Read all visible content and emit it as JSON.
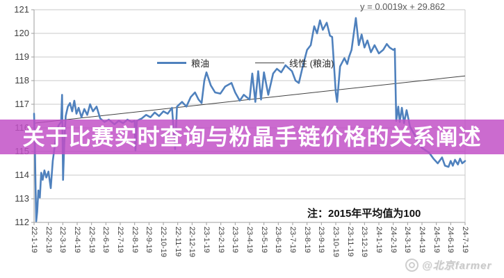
{
  "overlay": {
    "title": "关于比赛实时查询与粉晶手链价格的关系阐述",
    "band_color": "#c14fc6"
  },
  "watermark": {
    "text": "@北京farmer"
  },
  "chart_data": {
    "type": "line",
    "title": "",
    "xlabel": "",
    "ylabel": "",
    "equation_label": "y = 0.0019x + 29.862",
    "note": "注：2015年平均值为100",
    "ylim": [
      112,
      121
    ],
    "y_ticks": [
      112,
      113,
      114,
      115,
      116,
      117,
      118,
      119,
      120,
      121
    ],
    "grid": true,
    "legend_position": "top-center",
    "legend": [
      "粮油",
      "线性 (粮油)"
    ],
    "x_tick_labels": [
      "22-1-19",
      "22-2-19",
      "22-3-19",
      "22-4-19",
      "22-5-19",
      "22-6-19",
      "22-7-19",
      "22-8-19",
      "22-9-19",
      "22-10-19",
      "22-11-19",
      "22-12-19",
      "23-1-19",
      "23-2-19",
      "23-3-19",
      "23-4-19",
      "23-5-19",
      "23-6-19",
      "23-7-19",
      "23-8-19",
      "23-9-19",
      "23-10-19",
      "23-11-19",
      "23-12-19",
      "24-1-19",
      "24-2-19",
      "24-3-19",
      "24-4-19",
      "24-5-19",
      "24-6-19",
      "24-7-19"
    ],
    "colors": {
      "series": "#4f81bd",
      "trend": "#404040",
      "grid": "#c8c8c8",
      "axis": "#9e9e9e",
      "tick_label": "#3f3f3f"
    },
    "series": [
      {
        "name": "粮油",
        "color": "#4f81bd",
        "points": [
          [
            0,
            116.6
          ],
          [
            0.06,
            115.2
          ],
          [
            0.1,
            113.6
          ],
          [
            0.15,
            112.05
          ],
          [
            0.22,
            112.45
          ],
          [
            0.3,
            113.35
          ],
          [
            0.4,
            113.05
          ],
          [
            0.5,
            114.1
          ],
          [
            0.6,
            113.8
          ],
          [
            0.72,
            114.2
          ],
          [
            0.85,
            113.9
          ],
          [
            1,
            114.15
          ],
          [
            1.16,
            113.45
          ],
          [
            1.3,
            114.6
          ],
          [
            1.5,
            115.5
          ],
          [
            1.7,
            116.1
          ],
          [
            1.88,
            116.25
          ],
          [
            1.95,
            117.4
          ],
          [
            2.02,
            113.8
          ],
          [
            2.1,
            115.3
          ],
          [
            2.2,
            116.5
          ],
          [
            2.35,
            116.9
          ],
          [
            2.5,
            117.05
          ],
          [
            2.65,
            116.7
          ],
          [
            2.8,
            117.15
          ],
          [
            2.95,
            116.6
          ],
          [
            3.1,
            116.85
          ],
          [
            3.3,
            116.45
          ],
          [
            3.5,
            116.8
          ],
          [
            3.7,
            116.55
          ],
          [
            3.9,
            117
          ],
          [
            4.1,
            116.7
          ],
          [
            4.35,
            116.9
          ],
          [
            4.6,
            116.4
          ],
          [
            4.9,
            116.25
          ],
          [
            5.2,
            116.35
          ],
          [
            5.6,
            116.15
          ],
          [
            5.9,
            116.3
          ],
          [
            6.2,
            116.2
          ],
          [
            6.5,
            116.35
          ],
          [
            6.8,
            116.25
          ],
          [
            7,
            116.3
          ],
          [
            7.06,
            115.05
          ],
          [
            7.15,
            116.3
          ],
          [
            7.5,
            116.4
          ],
          [
            7.8,
            116.55
          ],
          [
            8.1,
            116.45
          ],
          [
            8.4,
            116.65
          ],
          [
            8.7,
            116.5
          ],
          [
            9,
            116.7
          ],
          [
            9.3,
            116.6
          ],
          [
            9.6,
            116.85
          ],
          [
            9.82,
            115.1
          ],
          [
            9.95,
            116.9
          ],
          [
            10.3,
            117.1
          ],
          [
            10.6,
            116.9
          ],
          [
            10.9,
            117.3
          ],
          [
            11.2,
            117.5
          ],
          [
            11.45,
            117.2
          ],
          [
            11.66,
            117.05
          ],
          [
            11.85,
            118
          ],
          [
            12,
            118.35
          ],
          [
            12.3,
            117.8
          ],
          [
            12.6,
            117.5
          ],
          [
            12.97,
            117.45
          ],
          [
            13.3,
            117.75
          ],
          [
            13.74,
            117.9
          ],
          [
            14,
            117.5
          ],
          [
            14.32,
            117.15
          ],
          [
            14.6,
            117.4
          ],
          [
            15,
            117.2
          ],
          [
            15.19,
            118.3
          ],
          [
            15.4,
            117.1
          ],
          [
            15.6,
            118.4
          ],
          [
            15.8,
            117.2
          ],
          [
            16,
            118.35
          ],
          [
            16.3,
            117.4
          ],
          [
            16.64,
            118.3
          ],
          [
            16.9,
            118.5
          ],
          [
            17.2,
            118.35
          ],
          [
            17.5,
            118.65
          ],
          [
            17.95,
            118.4
          ],
          [
            18.2,
            118
          ],
          [
            18.43,
            117.9
          ],
          [
            18.7,
            118.6
          ],
          [
            19,
            119.3
          ],
          [
            19.26,
            119.5
          ],
          [
            19.5,
            120.3
          ],
          [
            19.7,
            120
          ],
          [
            19.9,
            120.55
          ],
          [
            20.1,
            120.15
          ],
          [
            20.37,
            120.45
          ],
          [
            20.6,
            119.9
          ],
          [
            20.75,
            119.85
          ],
          [
            21,
            117.5
          ],
          [
            21.09,
            117.1
          ],
          [
            21.3,
            118.6
          ],
          [
            21.6,
            118.95
          ],
          [
            21.8,
            118.7
          ],
          [
            21.92,
            119
          ],
          [
            22.1,
            119.3
          ],
          [
            22.4,
            120.65
          ],
          [
            22.6,
            119.5
          ],
          [
            22.8,
            119.95
          ],
          [
            23,
            119.4
          ],
          [
            23.2,
            119.7
          ],
          [
            23.45,
            119.2
          ],
          [
            23.7,
            119.5
          ],
          [
            24,
            119.15
          ],
          [
            24.3,
            119.3
          ],
          [
            24.55,
            119.55
          ],
          [
            24.75,
            119.4
          ],
          [
            25,
            119.3
          ],
          [
            25.11,
            119.35
          ],
          [
            25.21,
            116.3
          ],
          [
            25.35,
            116.9
          ],
          [
            25.45,
            116.25
          ],
          [
            25.6,
            116.85
          ],
          [
            25.75,
            116.2
          ],
          [
            25.93,
            116.75
          ],
          [
            26.17,
            116.05
          ],
          [
            26.45,
            115.75
          ],
          [
            26.7,
            115.45
          ],
          [
            27,
            115.15
          ],
          [
            27.5,
            114.95
          ],
          [
            27.8,
            114.7
          ],
          [
            28.1,
            114.5
          ],
          [
            28.4,
            114.75
          ],
          [
            28.6,
            114.4
          ],
          [
            28.85,
            114.35
          ],
          [
            29,
            114.6
          ],
          [
            29.15,
            114.4
          ],
          [
            29.3,
            114.65
          ],
          [
            29.5,
            114.45
          ],
          [
            29.65,
            114.7
          ],
          [
            29.8,
            114.5
          ],
          [
            30,
            114.6
          ]
        ]
      }
    ],
    "trendline": {
      "name": "线性 (粮油)",
      "color": "#404040",
      "points": [
        [
          0,
          116.2
        ],
        [
          30,
          118.2
        ]
      ]
    }
  }
}
